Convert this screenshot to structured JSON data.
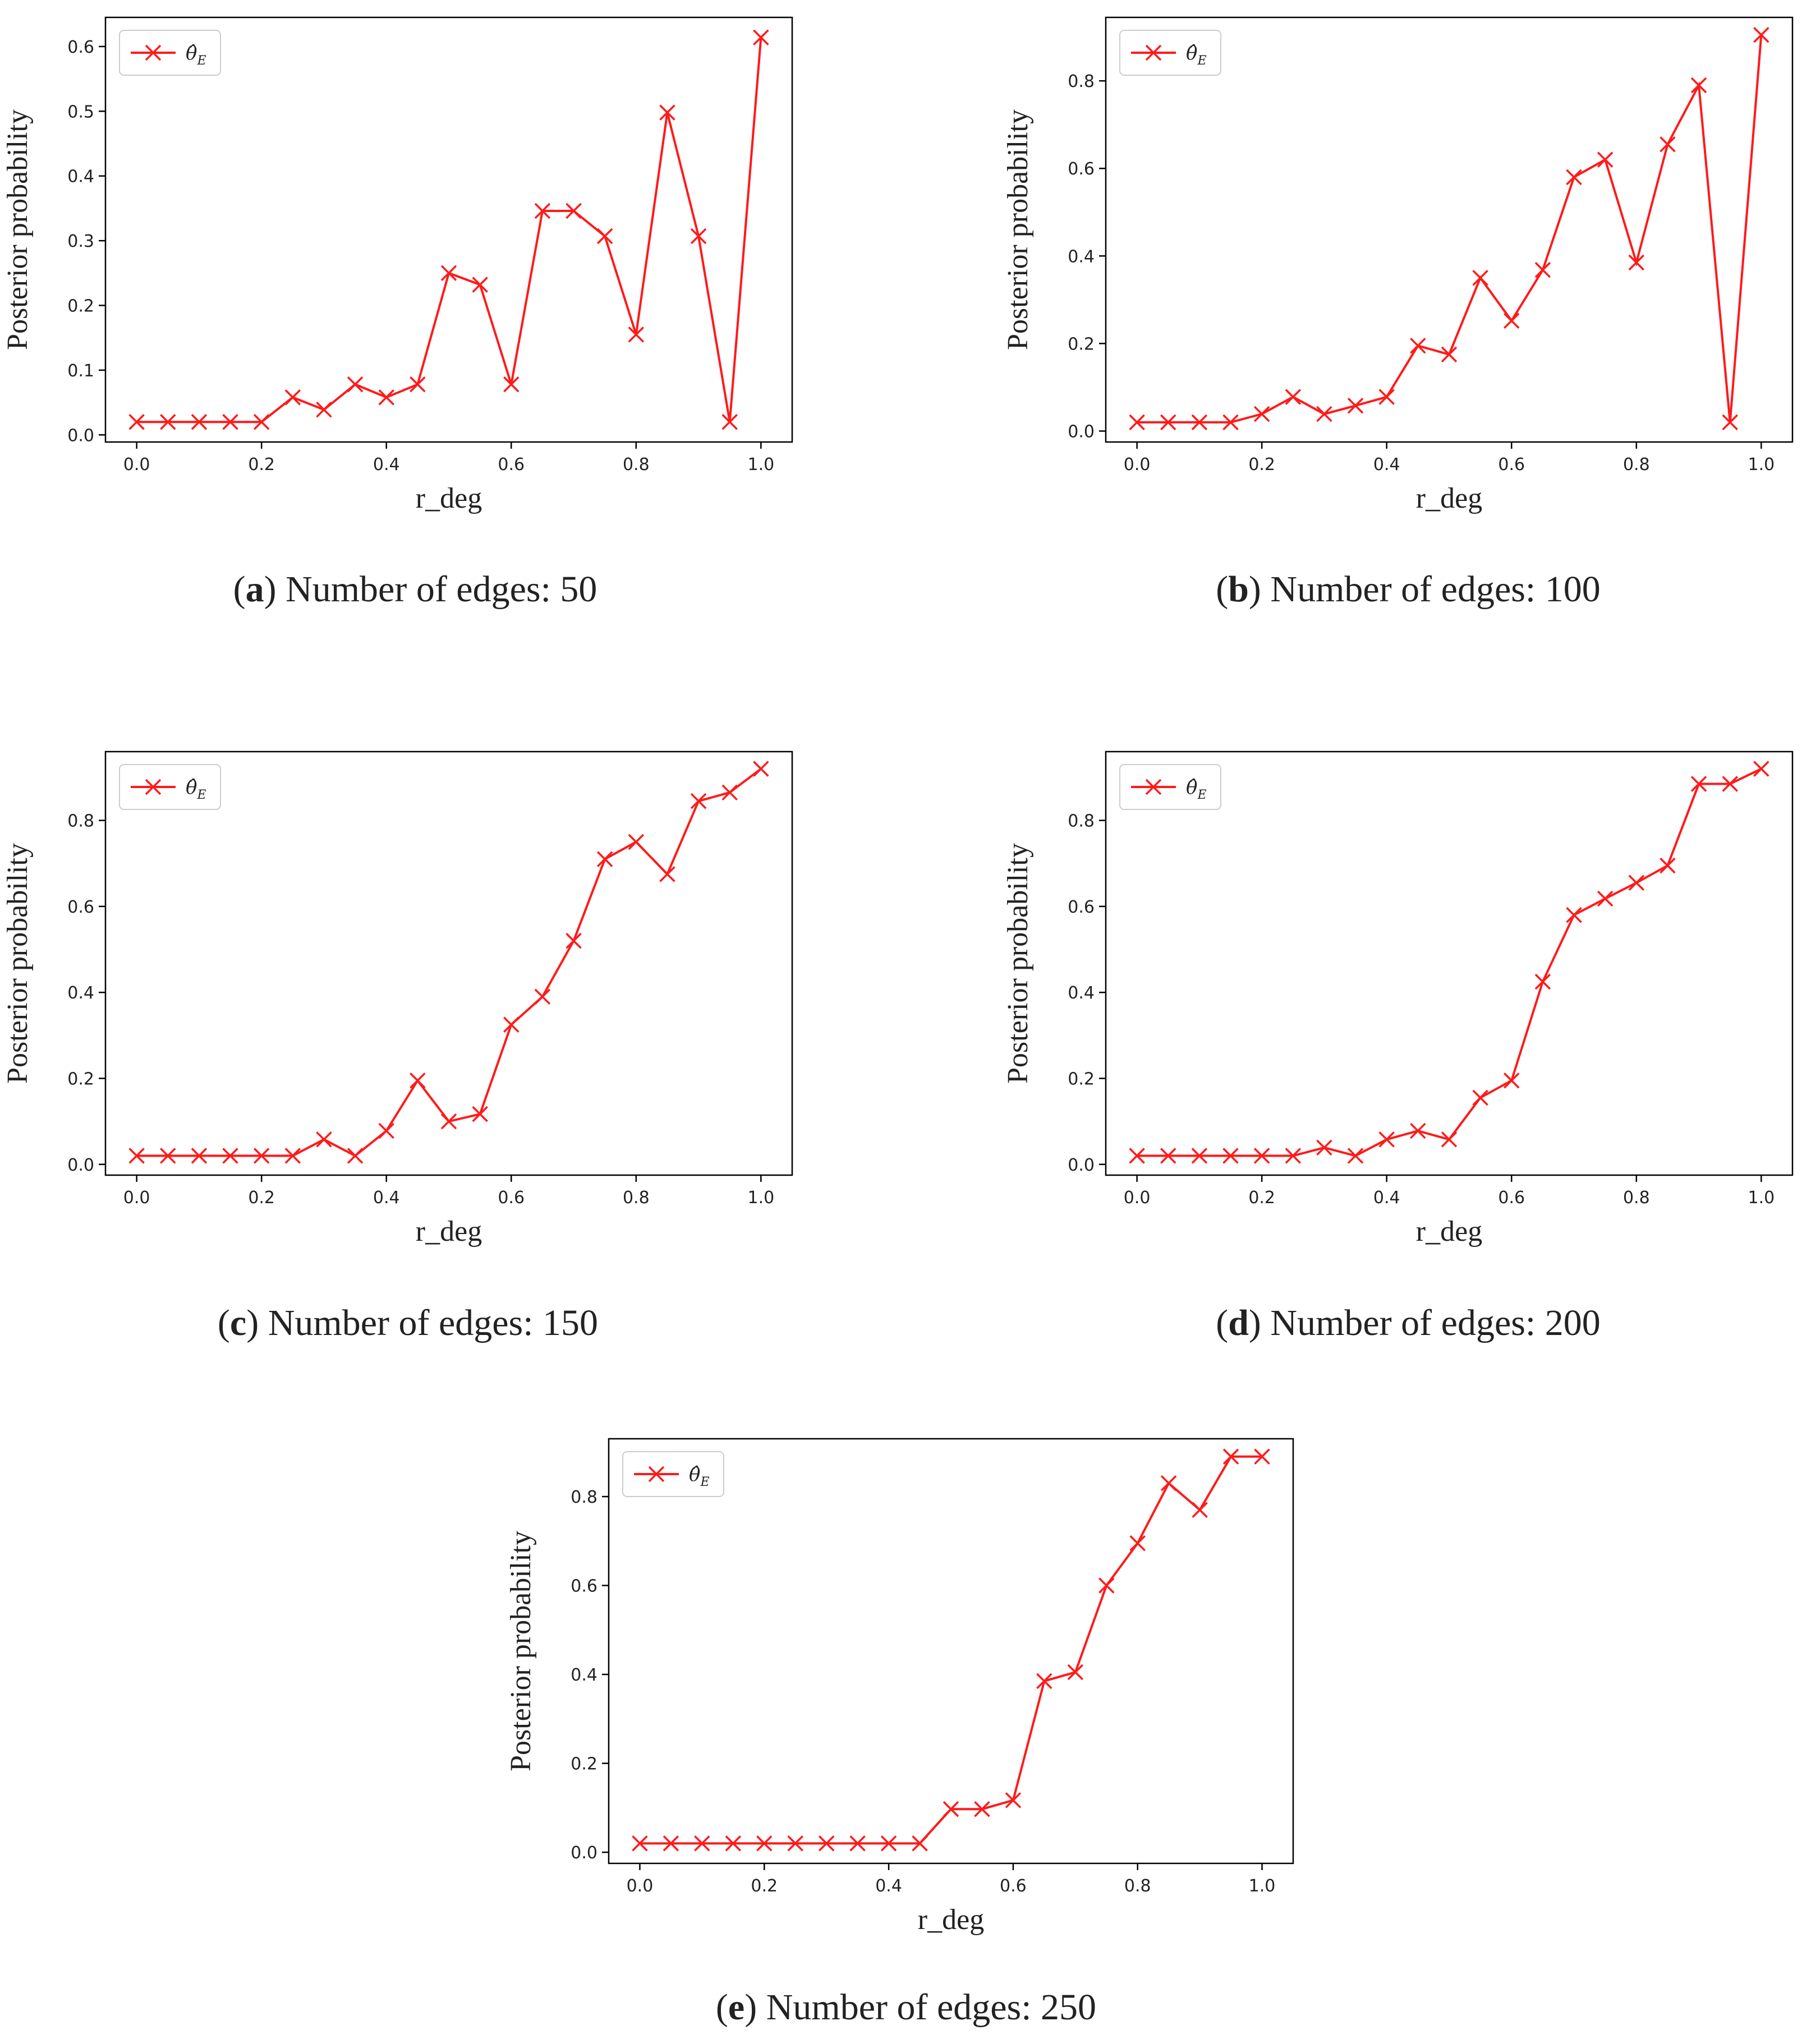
{
  "figure": {
    "panels": [
      {
        "caption_letter": "a",
        "caption_text": "Number of edges: 50"
      },
      {
        "caption_letter": "b",
        "caption_text": "Number of edges: 100"
      },
      {
        "caption_letter": "c",
        "caption_text": "Number of edges: 150"
      },
      {
        "caption_letter": "d",
        "caption_text": "Number of edges: 200"
      },
      {
        "caption_letter": "e",
        "caption_text": "Number of edges: 250"
      }
    ]
  },
  "colors": {
    "line": "#ff1a1a",
    "axis": "#000000"
  },
  "chart_data": [
    {
      "type": "line",
      "title": "",
      "xlabel": "r_deg",
      "ylabel": "Posterior probability",
      "legend": "θ̂_E",
      "legend_position": "top-left",
      "marker": "x",
      "x": [
        0.0,
        0.05,
        0.1,
        0.15,
        0.2,
        0.25,
        0.3,
        0.35,
        0.4,
        0.45,
        0.5,
        0.55,
        0.6,
        0.65,
        0.7,
        0.75,
        0.8,
        0.85,
        0.9,
        0.95,
        1.0
      ],
      "y": [
        0.02,
        0.02,
        0.02,
        0.02,
        0.02,
        0.058,
        0.039,
        0.078,
        0.058,
        0.078,
        0.25,
        0.232,
        0.078,
        0.346,
        0.346,
        0.307,
        0.155,
        0.498,
        0.307,
        0.02,
        0.614
      ],
      "xlim": [
        -0.05,
        1.05
      ],
      "ylim": [
        -0.011,
        0.645
      ],
      "xticks": [
        0.0,
        0.2,
        0.4,
        0.6,
        0.8,
        1.0
      ],
      "xtick_labels": [
        "0.0",
        "0.2",
        "0.4",
        "0.6",
        "0.8",
        "1.0"
      ],
      "yticks": [
        0.0,
        0.1,
        0.2,
        0.3,
        0.4,
        0.5,
        0.6
      ],
      "ytick_labels": [
        "0.0",
        "0.1",
        "0.2",
        "0.3",
        "0.4",
        "0.5",
        "0.6"
      ]
    },
    {
      "type": "line",
      "title": "",
      "xlabel": "r_deg",
      "ylabel": "Posterior probability",
      "legend": "θ̂_E",
      "legend_position": "top-left",
      "marker": "x",
      "x": [
        0.0,
        0.05,
        0.1,
        0.15,
        0.2,
        0.25,
        0.3,
        0.35,
        0.4,
        0.45,
        0.5,
        0.55,
        0.6,
        0.65,
        0.7,
        0.75,
        0.8,
        0.85,
        0.9,
        0.95,
        1.0
      ],
      "y": [
        0.02,
        0.02,
        0.02,
        0.02,
        0.039,
        0.078,
        0.039,
        0.058,
        0.078,
        0.195,
        0.175,
        0.35,
        0.252,
        0.368,
        0.58,
        0.62,
        0.385,
        0.655,
        0.79,
        0.02,
        0.905
      ],
      "xlim": [
        -0.05,
        1.05
      ],
      "ylim": [
        -0.025,
        0.945
      ],
      "xticks": [
        0.0,
        0.2,
        0.4,
        0.6,
        0.8,
        1.0
      ],
      "xtick_labels": [
        "0.0",
        "0.2",
        "0.4",
        "0.6",
        "0.8",
        "1.0"
      ],
      "yticks": [
        0.0,
        0.2,
        0.4,
        0.6,
        0.8
      ],
      "ytick_labels": [
        "0.0",
        "0.2",
        "0.4",
        "0.6",
        "0.8"
      ]
    },
    {
      "type": "line",
      "title": "",
      "xlabel": "r_deg",
      "ylabel": "Posterior probability",
      "legend": "θ̂_E",
      "legend_position": "top-left",
      "marker": "x",
      "x": [
        0.0,
        0.05,
        0.1,
        0.15,
        0.2,
        0.25,
        0.3,
        0.35,
        0.4,
        0.45,
        0.5,
        0.55,
        0.6,
        0.65,
        0.7,
        0.75,
        0.8,
        0.85,
        0.9,
        0.95,
        1.0
      ],
      "y": [
        0.02,
        0.02,
        0.02,
        0.02,
        0.02,
        0.02,
        0.058,
        0.02,
        0.078,
        0.195,
        0.1,
        0.117,
        0.325,
        0.39,
        0.52,
        0.71,
        0.75,
        0.675,
        0.845,
        0.865,
        0.92
      ],
      "xlim": [
        -0.05,
        1.05
      ],
      "ylim": [
        -0.025,
        0.96
      ],
      "xticks": [
        0.0,
        0.2,
        0.4,
        0.6,
        0.8,
        1.0
      ],
      "xtick_labels": [
        "0.0",
        "0.2",
        "0.4",
        "0.6",
        "0.8",
        "1.0"
      ],
      "yticks": [
        0.0,
        0.2,
        0.4,
        0.6,
        0.8
      ],
      "ytick_labels": [
        "0.0",
        "0.2",
        "0.4",
        "0.6",
        "0.8"
      ]
    },
    {
      "type": "line",
      "title": "",
      "xlabel": "r_deg",
      "ylabel": "Posterior probability",
      "legend": "θ̂_E",
      "legend_position": "top-left",
      "marker": "x",
      "x": [
        0.0,
        0.05,
        0.1,
        0.15,
        0.2,
        0.25,
        0.3,
        0.35,
        0.4,
        0.45,
        0.5,
        0.55,
        0.6,
        0.65,
        0.7,
        0.75,
        0.8,
        0.85,
        0.9,
        0.95,
        1.0
      ],
      "y": [
        0.02,
        0.02,
        0.02,
        0.02,
        0.02,
        0.02,
        0.039,
        0.02,
        0.058,
        0.078,
        0.058,
        0.155,
        0.195,
        0.425,
        0.58,
        0.618,
        0.655,
        0.695,
        0.885,
        0.885,
        0.92
      ],
      "xlim": [
        -0.05,
        1.05
      ],
      "ylim": [
        -0.025,
        0.96
      ],
      "xticks": [
        0.0,
        0.2,
        0.4,
        0.6,
        0.8,
        1.0
      ],
      "xtick_labels": [
        "0.0",
        "0.2",
        "0.4",
        "0.6",
        "0.8",
        "1.0"
      ],
      "yticks": [
        0.0,
        0.2,
        0.4,
        0.6,
        0.8
      ],
      "ytick_labels": [
        "0.0",
        "0.2",
        "0.4",
        "0.6",
        "0.8"
      ]
    },
    {
      "type": "line",
      "title": "",
      "xlabel": "r_deg",
      "ylabel": "Posterior probability",
      "legend": "θ̂_E",
      "legend_position": "top-left",
      "marker": "x",
      "x": [
        0.0,
        0.05,
        0.1,
        0.15,
        0.2,
        0.25,
        0.3,
        0.35,
        0.4,
        0.45,
        0.5,
        0.55,
        0.6,
        0.65,
        0.7,
        0.75,
        0.8,
        0.85,
        0.9,
        0.95,
        1.0
      ],
      "y": [
        0.02,
        0.02,
        0.02,
        0.02,
        0.02,
        0.02,
        0.02,
        0.02,
        0.02,
        0.02,
        0.097,
        0.097,
        0.117,
        0.385,
        0.405,
        0.6,
        0.695,
        0.83,
        0.77,
        0.89,
        0.89
      ],
      "xlim": [
        -0.05,
        1.05
      ],
      "ylim": [
        -0.025,
        0.93
      ],
      "xticks": [
        0.0,
        0.2,
        0.4,
        0.6,
        0.8,
        1.0
      ],
      "xtick_labels": [
        "0.0",
        "0.2",
        "0.4",
        "0.6",
        "0.8",
        "1.0"
      ],
      "yticks": [
        0.0,
        0.2,
        0.4,
        0.6,
        0.8
      ],
      "ytick_labels": [
        "0.0",
        "0.2",
        "0.4",
        "0.6",
        "0.8"
      ]
    }
  ]
}
